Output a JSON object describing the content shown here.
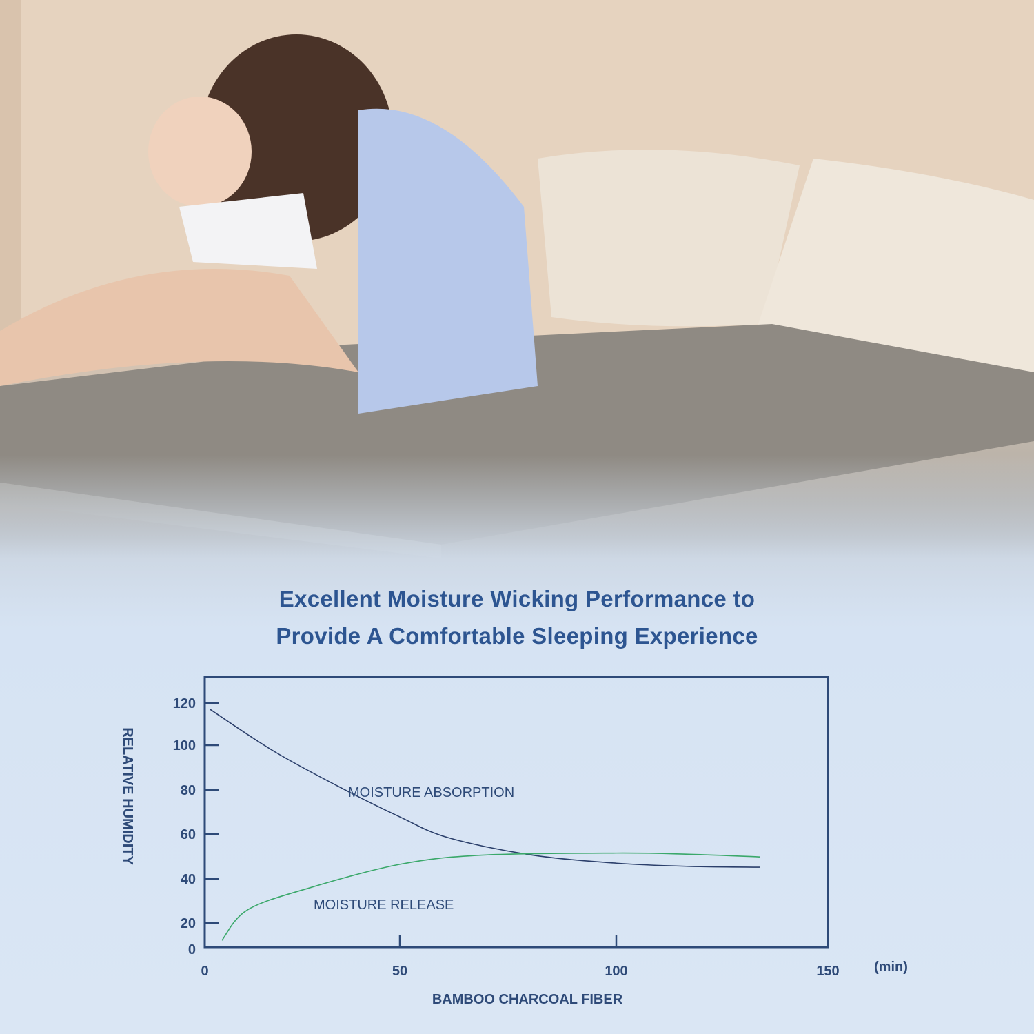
{
  "title_lines": [
    "Excellent Moisture Wicking Performance to",
    "Provide A Comfortable Sleeping Experience"
  ],
  "chart_data": {
    "type": "line",
    "title": "Excellent Moisture Wicking Performance to Provide A Comfortable Sleeping Experience",
    "xlabel": "BAMBOO CHARCOAL FIBER",
    "xunit": "(min)",
    "ylabel": "RELATIVE HUMIDITY",
    "xticks": [
      0,
      50,
      100,
      150
    ],
    "yticks": [
      0,
      20,
      40,
      60,
      80,
      100,
      120
    ],
    "xlim": [
      0,
      150
    ],
    "ylim": [
      0,
      132
    ],
    "grid": false,
    "series": [
      {
        "name": "MOISTURE ABSORPTION",
        "color": "#2b3f6b",
        "x": [
          1.4,
          18,
          36,
          50,
          61,
          80,
          100,
          117,
          134
        ],
        "y": [
          117,
          97,
          80,
          67.8,
          58.5,
          50.8,
          47,
          45.6,
          45.2
        ]
      },
      {
        "name": "MOISTURE RELEASE",
        "color": "#3aa86a",
        "x": [
          4.4,
          11,
          27,
          50,
          69,
          100,
          117,
          134
        ],
        "y": [
          5.6,
          26,
          36,
          46.5,
          50.6,
          51.5,
          51,
          49.8
        ]
      }
    ],
    "axis_color": "#2e4a78"
  }
}
